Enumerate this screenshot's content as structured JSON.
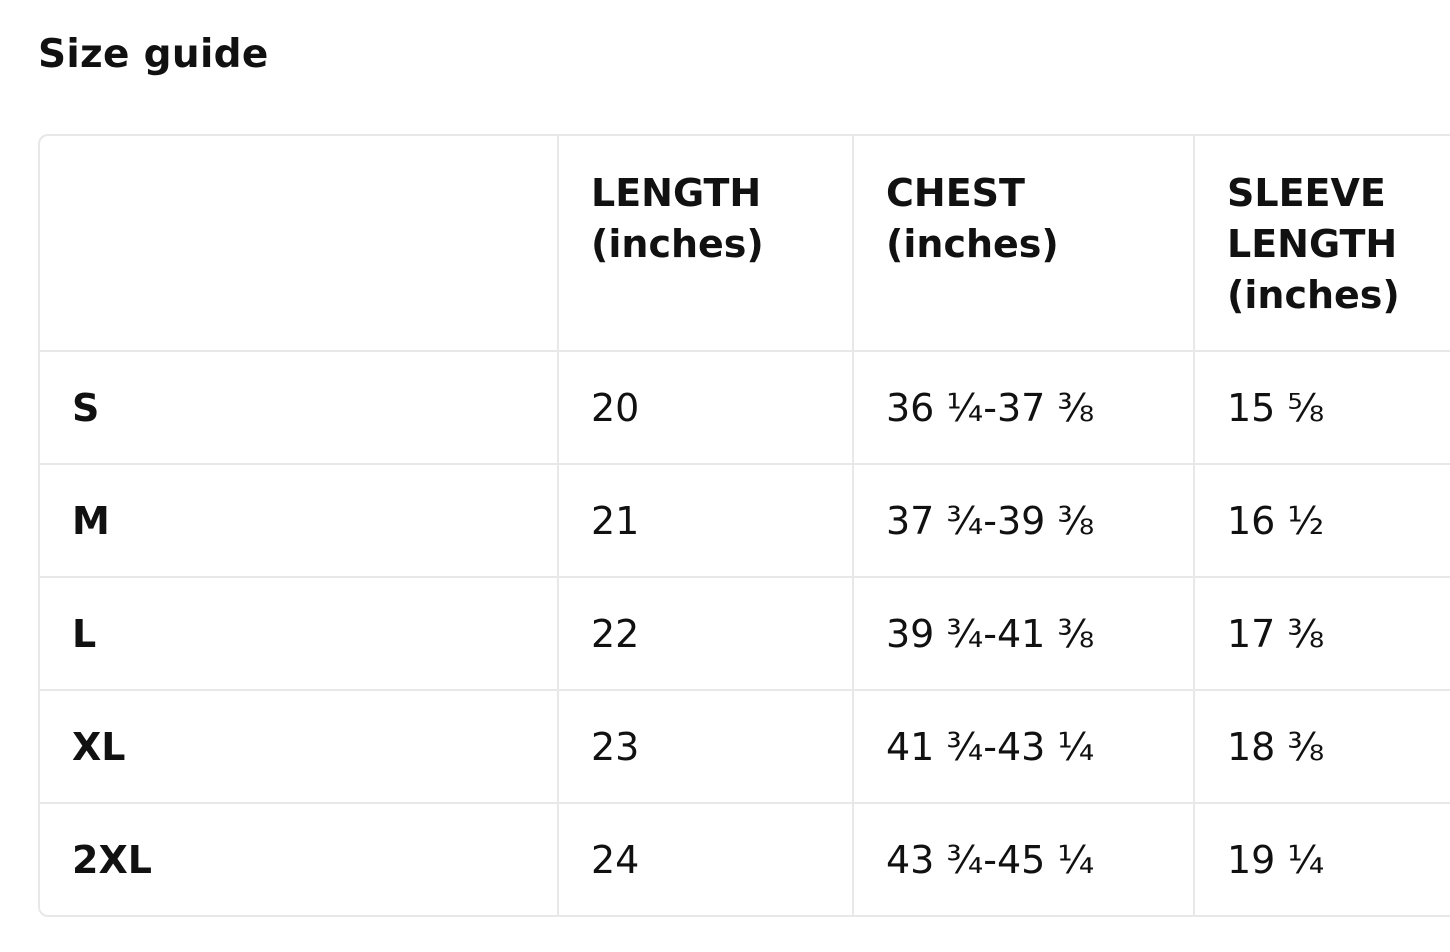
{
  "title": "Size guide",
  "table": {
    "headers": [
      "",
      "LENGTH (inches)",
      "CHEST (inches)",
      "SLEEVE LENGTH (inches)"
    ],
    "rows": [
      {
        "size": "S",
        "length": "20",
        "chest": "36 ¼-37 ⅜",
        "sleeve": "15 ⅝"
      },
      {
        "size": "M",
        "length": "21",
        "chest": "37 ¾-39 ⅜",
        "sleeve": "16 ½"
      },
      {
        "size": "L",
        "length": "22",
        "chest": "39 ¾-41 ⅜",
        "sleeve": "17 ⅜"
      },
      {
        "size": "XL",
        "length": "23",
        "chest": "41 ¾-43 ¼",
        "sleeve": "18 ⅜"
      },
      {
        "size": "2XL",
        "length": "24",
        "chest": "43 ¾-45 ¼",
        "sleeve": "19 ¼"
      }
    ]
  }
}
